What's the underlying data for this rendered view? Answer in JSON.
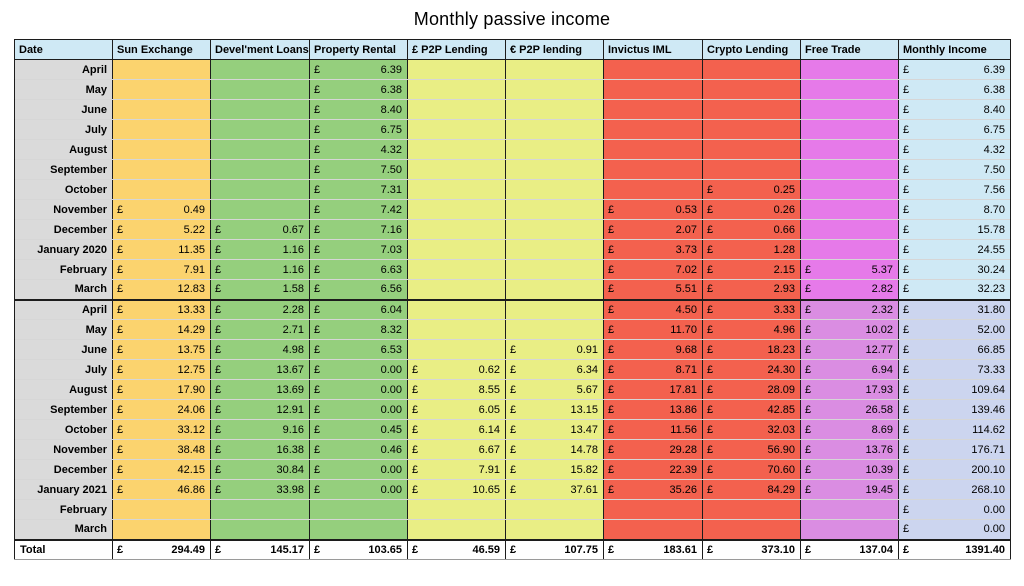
{
  "title": "Monthly passive income",
  "colors": {
    "header_bg": "#c2c2c2",
    "date_bg": "#dadada",
    "sun_exchange": "#fbd36e",
    "loans_rental": "#95cf7d",
    "p2p": "#e9ee85",
    "invictus_crypto": "#f3614e",
    "free_trade_fy1": "#e67ae9",
    "free_trade_fy2": "#da8de2",
    "monthly_fy1": "#cfe9f5",
    "monthly_fy2": "#ccd5ef"
  },
  "table": {
    "columns": [
      "Date",
      "Sun Exchange",
      "Devel'ment Loans",
      "Property Rental",
      "£ P2P Lending",
      "€ P2P lending",
      "Invictus IML",
      "Crypto Lending",
      "Free Trade",
      "Monthly Income"
    ],
    "currency": "£",
    "rows": [
      {
        "date": "April",
        "section": 1,
        "cells": [
          "",
          "",
          "6.39",
          "",
          "",
          "",
          "",
          ""
        ],
        "monthly": "6.39"
      },
      {
        "date": "May",
        "section": 1,
        "cells": [
          "",
          "",
          "6.38",
          "",
          "",
          "",
          "",
          ""
        ],
        "monthly": "6.38"
      },
      {
        "date": "June",
        "section": 1,
        "cells": [
          "",
          "",
          "8.40",
          "",
          "",
          "",
          "",
          ""
        ],
        "monthly": "8.40"
      },
      {
        "date": "July",
        "section": 1,
        "cells": [
          "",
          "",
          "6.75",
          "",
          "",
          "",
          "",
          ""
        ],
        "monthly": "6.75"
      },
      {
        "date": "August",
        "section": 1,
        "cells": [
          "",
          "",
          "4.32",
          "",
          "",
          "",
          "",
          ""
        ],
        "monthly": "4.32"
      },
      {
        "date": "September",
        "section": 1,
        "cells": [
          "",
          "",
          "7.50",
          "",
          "",
          "",
          "",
          ""
        ],
        "monthly": "7.50"
      },
      {
        "date": "October",
        "section": 1,
        "cells": [
          "",
          "",
          "7.31",
          "",
          "",
          "",
          "0.25",
          ""
        ],
        "monthly": "7.56"
      },
      {
        "date": "November",
        "section": 1,
        "cells": [
          "0.49",
          "",
          "7.42",
          "",
          "",
          "0.53",
          "0.26",
          ""
        ],
        "monthly": "8.70"
      },
      {
        "date": "December",
        "section": 1,
        "cells": [
          "5.22",
          "0.67",
          "7.16",
          "",
          "",
          "2.07",
          "0.66",
          ""
        ],
        "monthly": "15.78"
      },
      {
        "date": "January 2020",
        "section": 1,
        "cells": [
          "11.35",
          "1.16",
          "7.03",
          "",
          "",
          "3.73",
          "1.28",
          ""
        ],
        "monthly": "24.55"
      },
      {
        "date": "February",
        "section": 1,
        "cells": [
          "7.91",
          "1.16",
          "6.63",
          "",
          "",
          "7.02",
          "2.15",
          "5.37"
        ],
        "monthly": "30.24"
      },
      {
        "date": "March",
        "section": 1,
        "cells": [
          "12.83",
          "1.58",
          "6.56",
          "",
          "",
          "5.51",
          "2.93",
          "2.82"
        ],
        "monthly": "32.23"
      },
      {
        "date": "April",
        "section": 2,
        "cells": [
          "13.33",
          "2.28",
          "6.04",
          "",
          "",
          "4.50",
          "3.33",
          "2.32"
        ],
        "monthly": "31.80"
      },
      {
        "date": "May",
        "section": 2,
        "cells": [
          "14.29",
          "2.71",
          "8.32",
          "",
          "",
          "11.70",
          "4.96",
          "10.02"
        ],
        "monthly": "52.00"
      },
      {
        "date": "June",
        "section": 2,
        "cells": [
          "13.75",
          "4.98",
          "6.53",
          "",
          "0.91",
          "9.68",
          "18.23",
          "12.77"
        ],
        "monthly": "66.85"
      },
      {
        "date": "July",
        "section": 2,
        "cells": [
          "12.75",
          "13.67",
          "0.00",
          "0.62",
          "6.34",
          "8.71",
          "24.30",
          "6.94"
        ],
        "monthly": "73.33"
      },
      {
        "date": "August",
        "section": 2,
        "cells": [
          "17.90",
          "13.69",
          "0.00",
          "8.55",
          "5.67",
          "17.81",
          "28.09",
          "17.93"
        ],
        "monthly": "109.64"
      },
      {
        "date": "September",
        "section": 2,
        "cells": [
          "24.06",
          "12.91",
          "0.00",
          "6.05",
          "13.15",
          "13.86",
          "42.85",
          "26.58"
        ],
        "monthly": "139.46"
      },
      {
        "date": "October",
        "section": 2,
        "cells": [
          "33.12",
          "9.16",
          "0.45",
          "6.14",
          "13.47",
          "11.56",
          "32.03",
          "8.69"
        ],
        "monthly": "114.62"
      },
      {
        "date": "November",
        "section": 2,
        "cells": [
          "38.48",
          "16.38",
          "0.46",
          "6.67",
          "14.78",
          "29.28",
          "56.90",
          "13.76"
        ],
        "monthly": "176.71"
      },
      {
        "date": "December",
        "section": 2,
        "cells": [
          "42.15",
          "30.84",
          "0.00",
          "7.91",
          "15.82",
          "22.39",
          "70.60",
          "10.39"
        ],
        "monthly": "200.10"
      },
      {
        "date": "January 2021",
        "section": 2,
        "cells": [
          "46.86",
          "33.98",
          "0.00",
          "10.65",
          "37.61",
          "35.26",
          "84.29",
          "19.45"
        ],
        "monthly": "268.10"
      },
      {
        "date": "February",
        "section": 2,
        "cells": [
          "",
          "",
          "",
          "",
          "",
          "",
          "",
          ""
        ],
        "monthly": "0.00"
      },
      {
        "date": "March",
        "section": 2,
        "cells": [
          "",
          "",
          "",
          "",
          "",
          "",
          "",
          ""
        ],
        "monthly": "0.00"
      }
    ],
    "total_label": "Total",
    "total": {
      "cells": [
        "294.49",
        "145.17",
        "103.65",
        "46.59",
        "107.75",
        "183.61",
        "373.10",
        "137.04"
      ],
      "monthly": "1391.40"
    }
  }
}
